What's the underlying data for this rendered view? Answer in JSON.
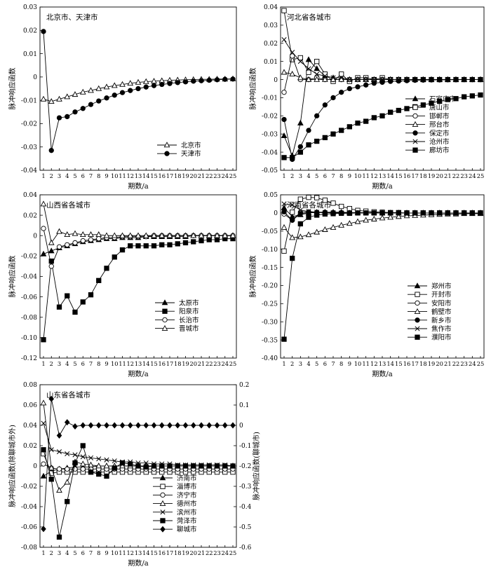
{
  "chart_data": [
    {
      "type": "line",
      "title": "北京市、天津市",
      "xlabel": "期数/a",
      "ylabel": "脉冲响应函数",
      "x": [
        1,
        2,
        3,
        4,
        5,
        6,
        7,
        8,
        9,
        10,
        11,
        12,
        13,
        14,
        15,
        16,
        17,
        18,
        19,
        20,
        21,
        22,
        23,
        24,
        25
      ],
      "ylim": [
        -0.04,
        0.03
      ],
      "yticks": [
        "0.03",
        "0.02",
        "0.01",
        "0",
        "-0.01",
        "-0.02",
        "-0.03",
        "-0.04"
      ],
      "legend_position": "bottom-right",
      "series": [
        {
          "name": "北京市",
          "marker": "triangle-open",
          "values": [
            -0.0095,
            -0.0105,
            -0.0095,
            -0.0085,
            -0.0075,
            -0.0065,
            -0.0058,
            -0.005,
            -0.0043,
            -0.0037,
            -0.0032,
            -0.0027,
            -0.0023,
            -0.002,
            -0.0018,
            -0.0016,
            -0.0014,
            -0.0013,
            -0.0012,
            -0.0011,
            -0.001,
            -0.001,
            -0.0009,
            -0.0009,
            -0.0008
          ]
        },
        {
          "name": "天津市",
          "marker": "circle-filled",
          "values": [
            0.0195,
            -0.0315,
            -0.0175,
            -0.017,
            -0.015,
            -0.0135,
            -0.0118,
            -0.0103,
            -0.009,
            -0.0078,
            -0.0067,
            -0.0058,
            -0.005,
            -0.0043,
            -0.0037,
            -0.0032,
            -0.0028,
            -0.0024,
            -0.0021,
            -0.0018,
            -0.0016,
            -0.0014,
            -0.0012,
            -0.001,
            -0.0009
          ]
        }
      ]
    },
    {
      "type": "line",
      "title": "河北省各城市",
      "xlabel": "期数/a",
      "ylabel": "脉冲响应函数",
      "x": [
        1,
        2,
        3,
        4,
        5,
        6,
        7,
        8,
        9,
        10,
        11,
        12,
        13,
        14,
        15,
        16,
        17,
        18,
        19,
        20,
        21,
        22,
        23,
        24,
        25
      ],
      "ylim": [
        -0.05,
        0.04
      ],
      "yticks": [
        "0.04",
        "0.03",
        "0.02",
        "0.01",
        "0",
        "-0.01",
        "-0.02",
        "-0.03",
        "-0.04",
        "-0.05"
      ],
      "legend_position": "bottom-right",
      "series": [
        {
          "name": "石家庄市",
          "marker": "triangle-filled",
          "values": [
            -0.031,
            -0.042,
            -0.024,
            0.011,
            0.006,
            0.002,
            0.001,
            0.001,
            0,
            0,
            0,
            0,
            0,
            0,
            0,
            0,
            0,
            0,
            0,
            0,
            0,
            0,
            0,
            0,
            0
          ]
        },
        {
          "name": "唐山市",
          "marker": "square-open",
          "values": [
            0.038,
            0.011,
            0.012,
            0.004,
            0.01,
            0.003,
            -0.001,
            0.003,
            -0.001,
            0.001,
            0.001,
            0,
            0.001,
            0,
            0,
            0,
            0,
            0,
            0,
            0,
            0,
            0,
            0,
            0,
            0
          ]
        },
        {
          "name": "邯郸市",
          "marker": "circle-open",
          "values": [
            -0.007,
            0.013,
            0,
            0,
            0.001,
            0,
            0,
            0,
            0,
            0,
            0,
            0,
            0,
            0,
            0,
            0,
            0,
            0,
            0,
            0,
            0,
            0,
            0,
            0,
            0
          ]
        },
        {
          "name": "邢台市",
          "marker": "triangle-open",
          "values": [
            0.004,
            0.003,
            0.001,
            0,
            0,
            0,
            0,
            0,
            0,
            0,
            0,
            0,
            0,
            0,
            0,
            0,
            0,
            0,
            0,
            0,
            0,
            0,
            0,
            0,
            0
          ]
        },
        {
          "name": "保定市",
          "marker": "circle-filled",
          "values": [
            -0.022,
            -0.044,
            -0.037,
            -0.028,
            -0.02,
            -0.014,
            -0.01,
            -0.007,
            -0.005,
            -0.004,
            -0.003,
            -0.002,
            -0.0015,
            -0.001,
            -0.0008,
            -0.0006,
            -0.0004,
            -0.0003,
            -0.0002,
            -0.0002,
            -0.0001,
            -0.0001,
            0,
            0,
            0
          ]
        },
        {
          "name": "沧州市",
          "marker": "cross",
          "values": [
            0.022,
            0.015,
            0.01,
            0.006,
            0.003,
            0.002,
            0.001,
            0.001,
            0,
            0,
            0,
            0,
            0,
            0,
            0,
            0,
            0,
            0,
            0,
            0,
            0,
            0,
            0,
            0,
            0
          ]
        },
        {
          "name": "廊坊市",
          "marker": "square-filled",
          "values": [
            -0.043,
            -0.043,
            -0.04,
            -0.036,
            -0.034,
            -0.032,
            -0.03,
            -0.028,
            -0.026,
            -0.024,
            -0.023,
            -0.021,
            -0.02,
            -0.018,
            -0.017,
            -0.016,
            -0.015,
            -0.014,
            -0.013,
            -0.012,
            -0.011,
            -0.0105,
            -0.0095,
            -0.009,
            -0.0085
          ]
        }
      ]
    },
    {
      "type": "line",
      "title": "山西省各城市",
      "xlabel": "期数/a",
      "ylabel": "脉冲响应函数",
      "x": [
        1,
        2,
        3,
        4,
        5,
        6,
        7,
        8,
        9,
        10,
        11,
        12,
        13,
        14,
        15,
        16,
        17,
        18,
        19,
        20,
        21,
        22,
        23,
        24,
        25
      ],
      "ylim": [
        -0.12,
        0.04
      ],
      "yticks": [
        "0.04",
        "0.02",
        "0",
        "-0.02",
        "-0.04",
        "-0.06",
        "-0.08",
        "-0.10",
        "-0.12"
      ],
      "legend_position": "bottom-right",
      "series": [
        {
          "name": "太原市",
          "marker": "triangle-filled",
          "values": [
            -0.018,
            -0.015,
            -0.012,
            -0.01,
            -0.008,
            -0.006,
            -0.005,
            -0.004,
            -0.003,
            -0.003,
            -0.002,
            -0.002,
            -0.002,
            -0.001,
            -0.001,
            -0.001,
            -0.001,
            -0.001,
            -0.001,
            0,
            0,
            0,
            0,
            0,
            0
          ]
        },
        {
          "name": "阳泉市",
          "marker": "square-filled",
          "values": [
            -0.102,
            -0.025,
            -0.07,
            -0.059,
            -0.075,
            -0.065,
            -0.058,
            -0.044,
            -0.032,
            -0.021,
            -0.014,
            -0.01,
            -0.01,
            -0.01,
            -0.01,
            -0.009,
            -0.009,
            -0.008,
            -0.007,
            -0.006,
            -0.005,
            -0.004,
            -0.004,
            -0.003,
            -0.003
          ]
        },
        {
          "name": "长治市",
          "marker": "circle-open",
          "values": [
            0.007,
            -0.03,
            -0.011,
            -0.009,
            -0.007,
            -0.005,
            -0.004,
            -0.003,
            -0.002,
            -0.002,
            -0.001,
            -0.001,
            -0.001,
            -0.001,
            0,
            0,
            0,
            0,
            0,
            0,
            0,
            0,
            0,
            0,
            0
          ]
        },
        {
          "name": "晋城市",
          "marker": "triangle-open",
          "values": [
            0.031,
            -0.007,
            0.004,
            0.001,
            0.002,
            0.001,
            0.001,
            0.001,
            0,
            0,
            0,
            0,
            0,
            0,
            0,
            0,
            0,
            0,
            0,
            0,
            0,
            0,
            0,
            0,
            0
          ]
        }
      ]
    },
    {
      "type": "line",
      "title": "河南省各城市",
      "xlabel": "期数/a",
      "ylabel": "脉冲响应函数",
      "x": [
        1,
        2,
        3,
        4,
        5,
        6,
        7,
        8,
        9,
        10,
        11,
        12,
        13,
        14,
        15,
        16,
        17,
        18,
        19,
        20,
        21,
        22,
        23,
        24,
        25
      ],
      "ylim": [
        -0.4,
        0.05
      ],
      "yticks": [
        "0.05",
        "0",
        "-0.05",
        "-0.10",
        "-0.15",
        "-0.20",
        "-0.25",
        "-0.30",
        "-0.35",
        "-0.40"
      ],
      "legend_position": "bottom-right",
      "series": [
        {
          "name": "郑州市",
          "marker": "triangle-filled",
          "values": [
            0.014,
            -0.01,
            -0.005,
            0,
            0.002,
            0.002,
            0.002,
            0.002,
            0.001,
            0.001,
            0.001,
            0.001,
            0,
            0,
            0,
            0,
            0,
            0,
            0,
            0,
            0,
            0,
            0,
            0,
            0
          ]
        },
        {
          "name": "开封市",
          "marker": "square-open",
          "values": [
            -0.105,
            0.002,
            0.038,
            0.043,
            0.042,
            0.035,
            0.027,
            0.018,
            0.012,
            0.007,
            0.005,
            0.003,
            0.002,
            0.001,
            0.001,
            0,
            0,
            0,
            0,
            0,
            0,
            0,
            0,
            0,
            0
          ]
        },
        {
          "name": "安阳市",
          "marker": "circle-open",
          "values": [
            -0.003,
            -0.02,
            0.002,
            0.003,
            0.002,
            0.002,
            0.001,
            0.001,
            0.001,
            0,
            0,
            0,
            0,
            0,
            0,
            0,
            0,
            0,
            0,
            0,
            0,
            0,
            0,
            0,
            0
          ]
        },
        {
          "name": "鹤壁市",
          "marker": "triangle-open",
          "values": [
            -0.04,
            -0.068,
            -0.066,
            -0.06,
            -0.053,
            -0.046,
            -0.04,
            -0.034,
            -0.029,
            -0.024,
            -0.02,
            -0.017,
            -0.014,
            -0.012,
            -0.01,
            -0.008,
            -0.007,
            -0.006,
            -0.005,
            -0.004,
            -0.003,
            -0.003,
            -0.002,
            -0.002,
            -0.002
          ]
        },
        {
          "name": "新乡市",
          "marker": "circle-filled",
          "values": [
            0.003,
            -0.02,
            -0.002,
            0.001,
            0.001,
            0.001,
            0,
            0,
            0,
            0,
            0,
            0,
            0,
            0,
            0,
            0,
            0,
            0,
            0,
            0,
            0,
            0,
            0,
            0,
            0
          ]
        },
        {
          "name": "焦作市",
          "marker": "cross",
          "values": [
            0.025,
            0.022,
            0.008,
            0.004,
            0.002,
            0.001,
            0.001,
            0,
            0,
            0,
            0,
            0,
            0,
            0,
            0,
            0,
            0,
            0,
            0,
            0,
            0,
            0,
            0,
            0,
            0
          ]
        },
        {
          "name": "濮阳市",
          "marker": "square-filled",
          "values": [
            -0.348,
            -0.125,
            -0.03,
            -0.012,
            -0.006,
            -0.003,
            -0.002,
            -0.001,
            -0.001,
            0,
            0,
            0,
            0,
            0,
            0,
            0,
            0,
            0,
            0,
            0,
            0,
            0,
            0,
            0,
            0
          ]
        }
      ]
    },
    {
      "type": "line",
      "title": "山东省各城市",
      "xlabel": "期数/a",
      "ylabel": "脉冲响应函数(除聊城市外)",
      "y2label": "脉冲响应函数(聊城市)",
      "x": [
        1,
        2,
        3,
        4,
        5,
        6,
        7,
        8,
        9,
        10,
        11,
        12,
        13,
        14,
        15,
        16,
        17,
        18,
        19,
        20,
        21,
        22,
        23,
        24,
        25
      ],
      "ylim": [
        -0.08,
        0.08
      ],
      "yticks": [
        "0.08",
        "0.06",
        "0.04",
        "0.02",
        "0",
        "-0.02",
        "-0.04",
        "-0.06",
        "-0.08"
      ],
      "y2lim": [
        -0.6,
        0.2
      ],
      "y2ticks": [
        "0.2",
        "0.1",
        "0",
        "-0.1",
        "-0.2",
        "-0.3",
        "-0.4",
        "-0.5",
        "-0.6"
      ],
      "legend_position": "bottom-right",
      "series": [
        {
          "name": "济南市",
          "marker": "triangle-filled",
          "axis": "left",
          "values": [
            -0.01,
            -0.005,
            -0.003,
            -0.002,
            -0.001,
            -0.001,
            -0.001,
            0,
            0,
            0,
            0,
            0,
            0,
            0,
            0,
            0,
            0,
            0,
            0,
            0,
            0,
            0,
            0,
            0,
            0
          ]
        },
        {
          "name": "淄博市",
          "marker": "square-open",
          "axis": "left",
          "values": [
            0.012,
            -0.007,
            -0.006,
            -0.006,
            -0.006,
            -0.006,
            -0.006,
            -0.006,
            -0.006,
            -0.006,
            -0.006,
            -0.006,
            -0.006,
            -0.006,
            -0.006,
            -0.006,
            -0.006,
            -0.006,
            -0.006,
            -0.006,
            -0.006,
            -0.006,
            -0.006,
            -0.006,
            -0.006
          ]
        },
        {
          "name": "济宁市",
          "marker": "circle-open",
          "axis": "left",
          "values": [
            0.002,
            -0.002,
            -0.003,
            -0.003,
            -0.003,
            -0.003,
            -0.003,
            -0.003,
            -0.003,
            -0.003,
            -0.003,
            -0.003,
            -0.003,
            -0.003,
            -0.003,
            -0.003,
            -0.003,
            -0.003,
            -0.003,
            -0.003,
            -0.003,
            -0.003,
            -0.003,
            -0.003,
            -0.003
          ]
        },
        {
          "name": "德州市",
          "marker": "triangle-open",
          "axis": "left",
          "values": [
            0.062,
            -0.002,
            -0.024,
            -0.016,
            0.004,
            0.002,
            0.001,
            0,
            0,
            0,
            0,
            0,
            0,
            0,
            0,
            0,
            0,
            0,
            0,
            0,
            0,
            0,
            0,
            0,
            0
          ]
        },
        {
          "name": "滨州市",
          "marker": "cross",
          "axis": "left",
          "values": [
            0.042,
            0.016,
            0.014,
            0.012,
            0.011,
            0.009,
            0.008,
            0.007,
            0.006,
            0.005,
            0.004,
            0.004,
            0.003,
            0.003,
            0.002,
            0.002,
            0.002,
            0.001,
            0.001,
            0.001,
            0.001,
            0.001,
            0.001,
            0.001,
            0
          ]
        },
        {
          "name": "菏泽市",
          "marker": "square-filled",
          "axis": "left",
          "values": [
            0.016,
            -0.013,
            -0.07,
            -0.035,
            0.003,
            0.02,
            -0.006,
            -0.008,
            -0.01,
            -0.002,
            0.003,
            0.002,
            0,
            -0.001,
            0,
            0,
            0,
            0,
            0,
            0,
            0,
            0,
            0,
            0,
            0
          ]
        },
        {
          "name": "聊城市",
          "marker": "diamond-filled",
          "axis": "right",
          "values": [
            -0.51,
            0.13,
            -0.05,
            0.015,
            -0.005,
            0,
            0,
            0,
            0,
            0,
            0,
            0,
            0,
            0,
            0,
            0,
            0,
            0,
            0,
            0,
            0,
            0,
            0,
            0,
            0
          ]
        }
      ]
    }
  ]
}
